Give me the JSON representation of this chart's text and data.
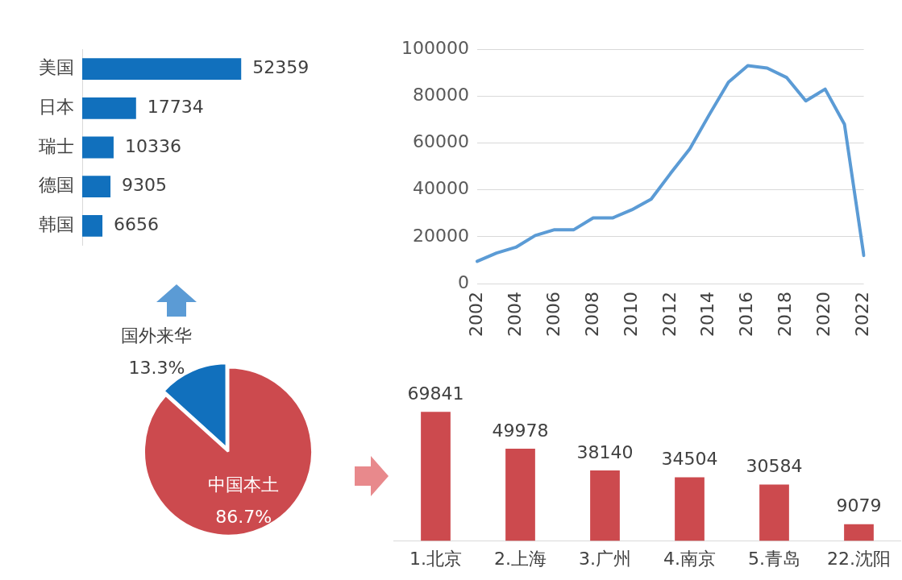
{
  "chart_data": [
    {
      "type": "bar",
      "orientation": "horizontal",
      "categories": [
        "美国",
        "日本",
        "瑞士",
        "德国",
        "韩国"
      ],
      "values": [
        52359,
        17734,
        10336,
        9305,
        6656
      ],
      "color": "#1170bd",
      "data_labels": true,
      "tick_labels": "y",
      "grid": false,
      "legend": false
    },
    {
      "type": "line",
      "categories": [
        "2002",
        null,
        "2004",
        null,
        "2006",
        null,
        "2008",
        null,
        "2010",
        null,
        "2012",
        null,
        "2014",
        null,
        "2016",
        null,
        "2018",
        null,
        "2020",
        null,
        "2022"
      ],
      "values": [
        9500,
        13000,
        15500,
        20500,
        23000,
        23000,
        28000,
        28000,
        31500,
        36000,
        47000,
        57500,
        72000,
        86000,
        93000,
        92000,
        88000,
        78000,
        83000,
        68000,
        12000
      ],
      "color": "#5b9bd5",
      "ylim": [
        0,
        100000
      ],
      "yticks": [
        0,
        20000,
        40000,
        60000,
        80000,
        100000
      ],
      "grid": "y",
      "marker": "none",
      "line_style": "solid",
      "legend": false
    },
    {
      "type": "pie",
      "categories": [
        "中国本土",
        "国外来华"
      ],
      "values": [
        86.7,
        13.3
      ],
      "colors": [
        "#cc4a4e",
        "#1170bd"
      ],
      "value_labels": [
        "86.7%",
        "13.3%"
      ],
      "legend": false
    },
    {
      "type": "bar",
      "categories": [
        "1.北京",
        "2.上海",
        "3.广州",
        "4.南京",
        "5.青岛",
        "22.沈阳"
      ],
      "values": [
        69841,
        49978,
        38140,
        34504,
        30584,
        9079
      ],
      "color": "#cc4a4e",
      "data_labels": true,
      "tick_labels": "x",
      "grid": false,
      "legend": false
    }
  ]
}
